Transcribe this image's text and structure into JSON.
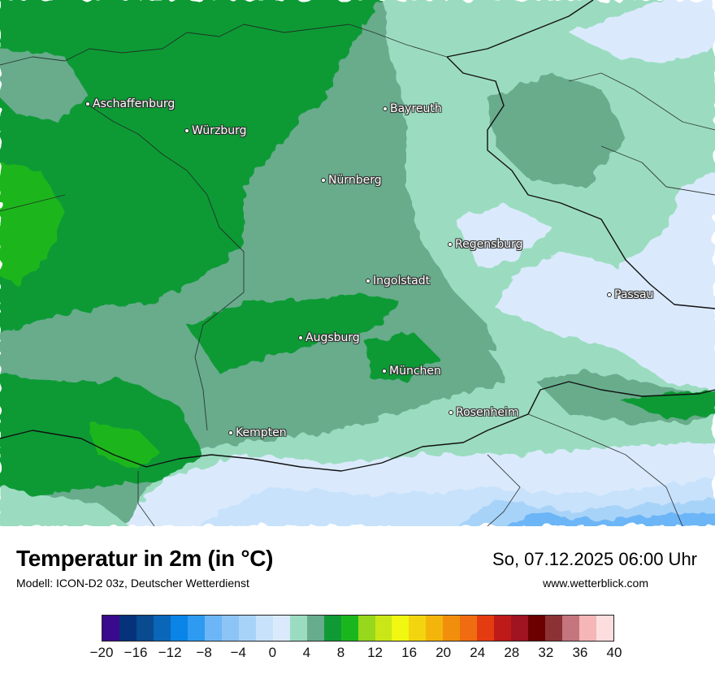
{
  "map": {
    "title": "Temperatur in 2m (in °C)",
    "model": "Modell: ICON-D2 03z, Deutscher Wetterdienst",
    "datetime": "So, 07.12.2025 06:00 Uhr",
    "website": "www.wetterblick.com",
    "cities": [
      {
        "name": "Aschaffenburg",
        "id": "aschaffenburg"
      },
      {
        "name": "Würzburg",
        "id": "wuerzburg"
      },
      {
        "name": "Bayreuth",
        "id": "bayreuth"
      },
      {
        "name": "Nürnberg",
        "id": "nuernberg"
      },
      {
        "name": "Regensburg",
        "id": "regensburg"
      },
      {
        "name": "Ingolstadt",
        "id": "ingolstadt"
      },
      {
        "name": "Passau",
        "id": "passau"
      },
      {
        "name": "Augsburg",
        "id": "augsburg"
      },
      {
        "name": "München",
        "id": "muenchen"
      },
      {
        "name": "Rosenheim",
        "id": "rosenheim"
      },
      {
        "name": "Kempten",
        "id": "kempten"
      }
    ]
  },
  "legend": {
    "colors": [
      "#3a0a8c",
      "#05327a",
      "#0a4a8f",
      "#0a66b8",
      "#0a84e6",
      "#2e9bf0",
      "#6cb6f7",
      "#8cc4f5",
      "#a8d3f8",
      "#c8e2fb",
      "#daeafc",
      "#9bdcc0",
      "#67ac8c",
      "#109a36",
      "#1ab61e",
      "#97d71c",
      "#c9e617",
      "#f0f711",
      "#f2d50e",
      "#f3b50c",
      "#f18f0c",
      "#ef6c10",
      "#e53b10",
      "#bd1a19",
      "#a01320",
      "#6c0000",
      "#8c3235",
      "#c4757d",
      "#f4b6b6",
      "#fddede"
    ],
    "ticks": [
      "−20",
      "−16",
      "−12",
      "−8",
      "−4",
      "0",
      "4",
      "8",
      "12",
      "16",
      "20",
      "24",
      "28",
      "32",
      "36",
      "40"
    ],
    "min": -20,
    "max": 40
  }
}
